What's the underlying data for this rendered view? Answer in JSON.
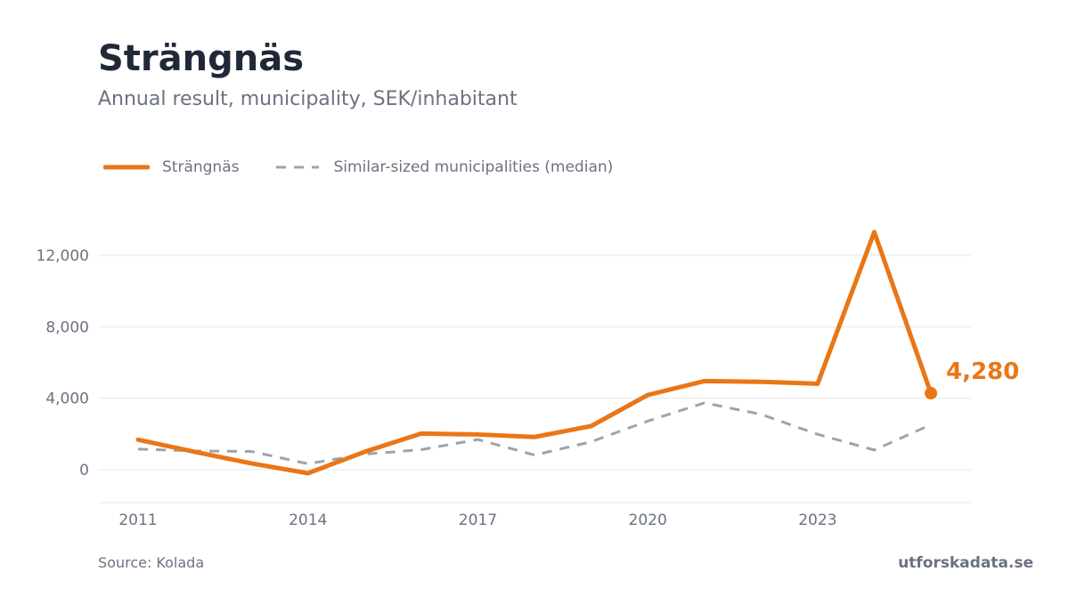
{
  "header": {
    "title": "Strängnäs",
    "subtitle": "Annual result, municipality, SEK/inhabitant"
  },
  "footer": {
    "source": "Source: Kolada",
    "brand": "utforskadata.se"
  },
  "colors": {
    "primary": "#ea7616",
    "comparison": "#9ca3af",
    "grid": "#e5e7eb",
    "text_dark": "#1f2937",
    "text_muted": "#6b7280"
  },
  "chart_data": {
    "type": "line",
    "title": "Strängnäs",
    "subtitle": "Annual result, municipality, SEK/inhabitant",
    "xlabel": "",
    "ylabel": "",
    "x": [
      2011,
      2012,
      2013,
      2014,
      2015,
      2016,
      2017,
      2018,
      2019,
      2020,
      2021,
      2022,
      2023,
      2024,
      2025
    ],
    "x_ticks": [
      "2011",
      "2014",
      "2017",
      "2020",
      "2023"
    ],
    "y_ticks": [
      "0",
      "4,000",
      "8,000",
      "12,000"
    ],
    "ylim": [
      -1800,
      14000
    ],
    "grid": true,
    "legend_position": "top-left",
    "series": [
      {
        "name": "Strängnäs",
        "style": "solid",
        "values": [
          1680,
          1000,
          350,
          -200,
          1000,
          2020,
          1970,
          1830,
          2440,
          4180,
          4960,
          4920,
          4810,
          13300,
          4280
        ]
      },
      {
        "name": "Similar-sized municipalities (median)",
        "style": "dashed",
        "values": [
          1150,
          1050,
          1020,
          330,
          870,
          1120,
          1690,
          820,
          1560,
          2720,
          3740,
          3100,
          1980,
          1100,
          2520
        ]
      }
    ],
    "annotations": [
      {
        "label": "4,280",
        "x": 2025,
        "y": 4280
      }
    ]
  }
}
